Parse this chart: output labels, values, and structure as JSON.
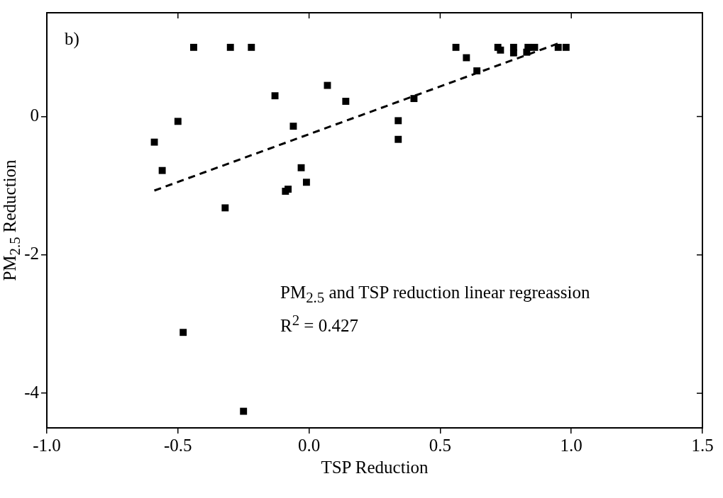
{
  "chart_data": {
    "type": "scatter",
    "xlabel": "TSP Reduction",
    "ylabel": "PM$_{2.5}$ Reduction",
    "xlim": [
      -1,
      1.5
    ],
    "xticks": [
      {
        "value": -1,
        "label": "-1.0"
      },
      {
        "value": -0.5,
        "label": "-0.5"
      },
      {
        "value": 0,
        "label": "0.0"
      },
      {
        "value": 0.5,
        "label": "0.5"
      },
      {
        "value": 1,
        "label": "1.0"
      },
      {
        "value": 1.5,
        "label": "1.5"
      }
    ],
    "ylim": [
      -4.5,
      1.5
    ],
    "yticks": [
      -4,
      -2,
      0
    ],
    "grid": false,
    "legend": false,
    "annotations": [
      "b)",
      "PM$_{2.5}$ and TSP reduction linear regreassion",
      "R$^{2}$ = 0.427"
    ],
    "series": [
      {
        "type": "scatter",
        "color": "#000000",
        "marker": "square",
        "x": [
          -0.44,
          -0.3,
          -0.22,
          -0.13,
          0.07,
          0.14,
          -0.5,
          -0.59,
          -0.06,
          -0.56,
          -0.03,
          -0.01,
          -0.09,
          -0.08,
          -0.32,
          -0.48,
          -0.25,
          0.56,
          0.6,
          0.64,
          0.4,
          0.34,
          0.34,
          0.72,
          0.73,
          0.78,
          0.78,
          0.83,
          0.835,
          0.86,
          0.95,
          0.97,
          0.98
        ],
        "values": [
          1.0,
          1.0,
          1.0,
          0.3,
          0.45,
          0.22,
          -0.07,
          -0.37,
          -0.14,
          -0.78,
          -0.74,
          -0.95,
          -1.08,
          -1.05,
          -1.32,
          -3.12,
          -4.26,
          1.0,
          0.85,
          0.66,
          0.26,
          -0.06,
          -0.33,
          1.0,
          0.96,
          1.0,
          0.92,
          0.93,
          1.0,
          1.0,
          1.0,
          null,
          1.0
        ]
      },
      {
        "type": "line",
        "color": "#000000",
        "marker": "none",
        "line_style": "dashed",
        "x": [
          -0.59,
          0.96
        ],
        "values": [
          -1.07,
          1.07
        ]
      }
    ]
  }
}
